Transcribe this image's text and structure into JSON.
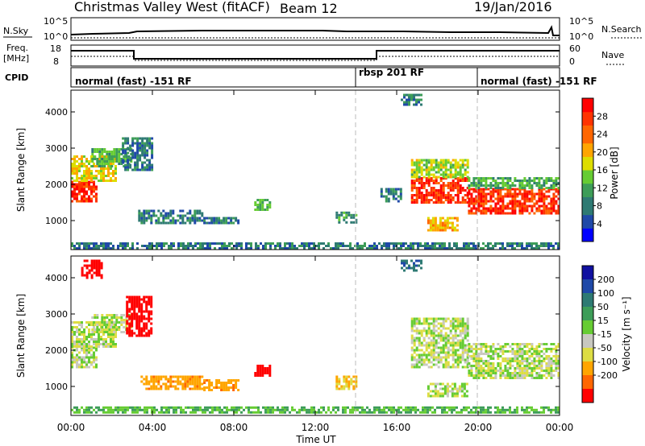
{
  "header": {
    "title": "Christmas Valley West (fitACF)",
    "beam": "Beam 12",
    "date": "19/Jan/2016"
  },
  "strips": {
    "sky_label": "N.Sky",
    "sky_ticks": [
      "10^5",
      "10^0"
    ],
    "search_label": "N.Search",
    "search_ticks": [
      "10^5",
      "10^0"
    ],
    "freq_label_1": "Freq.",
    "freq_label_2": "[MHz]",
    "freq_ticks": [
      "18",
      "8"
    ],
    "nave_label": "Nave",
    "nave_ticks": [
      "60",
      "0"
    ],
    "cpid_label": "CPID"
  },
  "cpid_segments": [
    {
      "label": "normal (fast) -151 RF",
      "start_hour": 0
    },
    {
      "label": "rbsp 201 RF",
      "start_hour": 14
    },
    {
      "label": "normal (fast) -151 RF",
      "start_hour": 20
    }
  ],
  "colors": {
    "power": [
      "#0000ff",
      "#1f49a8",
      "#2e7a73",
      "#3d9d58",
      "#66cc33",
      "#dddd00",
      "#ffa500",
      "#ff6600",
      "#ff3300",
      "#ff0000"
    ],
    "velocity": [
      "#ff0000",
      "#ff6600",
      "#ffa500",
      "#dddd44",
      "#c8c8c0",
      "#66cc33",
      "#3d9d58",
      "#2e7a73",
      "#1f49a8",
      "#1010a0"
    ]
  },
  "chart_data": [
    {
      "type": "heatmap",
      "name": "power",
      "ylabel": "Slant Range [km]",
      "yticks": [
        "4000",
        "3000",
        "2000",
        "1000"
      ],
      "ylim": [
        200,
        4600
      ],
      "xlim": [
        0,
        24
      ],
      "colorbar_label": "Power [dB]",
      "colorbar_ticks": [
        "28",
        "24",
        "20",
        "16",
        "12",
        "8",
        "4"
      ],
      "colorbar_range": [
        0,
        32
      ],
      "regions": [
        {
          "t0": 0.0,
          "t1": 1.2,
          "r0": 1500,
          "r1": 2100,
          "value": 28
        },
        {
          "t0": 0.0,
          "t1": 2.2,
          "r0": 2100,
          "r1": 2800,
          "value": 18
        },
        {
          "t0": 1.0,
          "t1": 3.0,
          "r0": 2500,
          "r1": 3000,
          "value": 12
        },
        {
          "t0": 2.5,
          "t1": 4.0,
          "r0": 2400,
          "r1": 3300,
          "value": 8
        },
        {
          "t0": 3.3,
          "t1": 6.5,
          "r0": 900,
          "r1": 1300,
          "value": 8
        },
        {
          "t0": 6.5,
          "t1": 8.2,
          "r0": 900,
          "r1": 1100,
          "value": 8
        },
        {
          "t0": 9.0,
          "t1": 9.8,
          "r0": 1300,
          "r1": 1600,
          "value": 12
        },
        {
          "t0": 13.0,
          "t1": 14.0,
          "r0": 950,
          "r1": 1250,
          "value": 10
        },
        {
          "t0": 15.2,
          "t1": 16.2,
          "r0": 1500,
          "r1": 1900,
          "value": 8
        },
        {
          "t0": 16.2,
          "t1": 17.2,
          "r0": 4200,
          "r1": 4500,
          "value": 8
        },
        {
          "t0": 16.7,
          "t1": 19.5,
          "r0": 1500,
          "r1": 2200,
          "value": 28
        },
        {
          "t0": 16.7,
          "t1": 19.5,
          "r0": 2200,
          "r1": 2700,
          "value": 16
        },
        {
          "t0": 19.5,
          "t1": 24.0,
          "r0": 1200,
          "r1": 1900,
          "value": 28
        },
        {
          "t0": 19.5,
          "t1": 24.0,
          "r0": 1900,
          "r1": 2200,
          "value": 12
        },
        {
          "t0": 17.5,
          "t1": 19.0,
          "r0": 700,
          "r1": 1100,
          "value": 20
        },
        {
          "t0": 0.0,
          "t1": 24.0,
          "r0": 250,
          "r1": 400,
          "value": 8
        }
      ]
    },
    {
      "type": "heatmap",
      "name": "velocity",
      "ylabel": "Slant Range [km]",
      "yticks": [
        "4000",
        "3000",
        "2000",
        "1000"
      ],
      "ylim": [
        200,
        4600
      ],
      "xlim": [
        0,
        24
      ],
      "xticks": [
        "00:00",
        "04:00",
        "08:00",
        "12:00",
        "16:00",
        "20:00",
        "00:00"
      ],
      "xlabel": "Time UT",
      "colorbar_label": "Velocity [m s⁻¹]",
      "colorbar_ticks": [
        "200",
        "100",
        "50",
        "15",
        "-15",
        "-50",
        "-100",
        "-200"
      ],
      "regions": [
        {
          "t0": 0.0,
          "t1": 1.2,
          "r0": 1500,
          "r1": 2100,
          "value": 0
        },
        {
          "t0": 0.0,
          "t1": 2.2,
          "r0": 2100,
          "r1": 2800,
          "value": 0
        },
        {
          "t0": 1.0,
          "t1": 3.0,
          "r0": 2500,
          "r1": 3000,
          "value": 0
        },
        {
          "t0": 0.5,
          "t1": 1.5,
          "r0": 4000,
          "r1": 4500,
          "value": -200
        },
        {
          "t0": 2.7,
          "t1": 4.0,
          "r0": 2400,
          "r1": 3500,
          "value": -180
        },
        {
          "t0": 3.3,
          "t1": 6.5,
          "r0": 900,
          "r1": 1300,
          "value": -60
        },
        {
          "t0": 6.5,
          "t1": 8.2,
          "r0": 900,
          "r1": 1200,
          "value": -60
        },
        {
          "t0": 9.0,
          "t1": 9.8,
          "r0": 1300,
          "r1": 1600,
          "value": -200
        },
        {
          "t0": 13.0,
          "t1": 14.0,
          "r0": 950,
          "r1": 1300,
          "value": -30
        },
        {
          "t0": 16.2,
          "t1": 17.2,
          "r0": 4200,
          "r1": 4500,
          "value": 150
        },
        {
          "t0": 16.7,
          "t1": 19.5,
          "r0": 1500,
          "r1": 2900,
          "value": 0
        },
        {
          "t0": 19.5,
          "t1": 24.0,
          "r0": 1200,
          "r1": 2200,
          "value": 0
        },
        {
          "t0": 17.5,
          "t1": 19.5,
          "r0": 700,
          "r1": 1100,
          "value": 0
        },
        {
          "t0": 0.0,
          "t1": 24.0,
          "r0": 250,
          "r1": 450,
          "value": 30
        }
      ]
    }
  ]
}
